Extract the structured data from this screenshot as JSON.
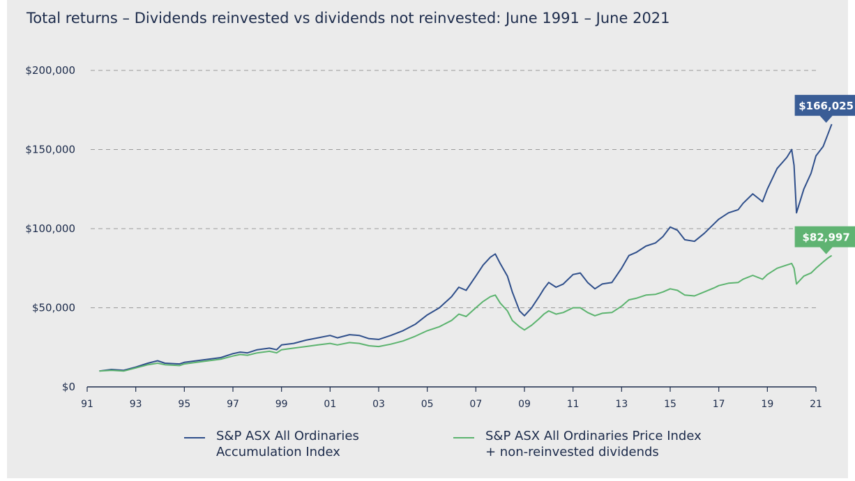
{
  "header": {
    "subtitle": "Total returns – Dividends reinvested vs dividends not reinvested: June 1991 – June 2021"
  },
  "colors": {
    "accumulation": "#2e4e8a",
    "price": "#5bb36e",
    "accumulation_callout": "#3a5d96",
    "price_callout": "#5fb372",
    "gridline": "#9a9a9a",
    "axis": "#1b2a4a"
  },
  "chart_data": {
    "type": "line",
    "xlabel": "",
    "ylabel": "",
    "xlim": [
      1991,
      2021
    ],
    "ylim": [
      0,
      200000
    ],
    "grid": true,
    "legend_placement": "bottom",
    "y_ticks": [
      {
        "value": 0,
        "label": "$0"
      },
      {
        "value": 50000,
        "label": "$50,000"
      },
      {
        "value": 100000,
        "label": "$100,000"
      },
      {
        "value": 150000,
        "label": "$150,000"
      },
      {
        "value": 200000,
        "label": "$200,000"
      }
    ],
    "x_ticks": [
      {
        "value": 1991,
        "label": "91"
      },
      {
        "value": 1993,
        "label": "93"
      },
      {
        "value": 1995,
        "label": "95"
      },
      {
        "value": 1997,
        "label": "97"
      },
      {
        "value": 1999,
        "label": "99"
      },
      {
        "value": 2001,
        "label": "01"
      },
      {
        "value": 2003,
        "label": "03"
      },
      {
        "value": 2005,
        "label": "05"
      },
      {
        "value": 2007,
        "label": "07"
      },
      {
        "value": 2009,
        "label": "09"
      },
      {
        "value": 2011,
        "label": "11"
      },
      {
        "value": 2013,
        "label": "13"
      },
      {
        "value": 2015,
        "label": "15"
      },
      {
        "value": 2017,
        "label": "17"
      },
      {
        "value": 2019,
        "label": "19"
      },
      {
        "value": 2021,
        "label": "21"
      }
    ],
    "series": [
      {
        "name": "S&P ASX All Ordinaries\nAccumulation Index",
        "key": "accumulation",
        "end_label": "$166,025",
        "points": [
          [
            1991.5,
            10000
          ],
          [
            1992.0,
            11000
          ],
          [
            1992.5,
            10500
          ],
          [
            1993.0,
            12500
          ],
          [
            1993.5,
            15000
          ],
          [
            1993.9,
            16500
          ],
          [
            1994.2,
            15000
          ],
          [
            1994.8,
            14500
          ],
          [
            1995.0,
            15500
          ],
          [
            1995.5,
            16500
          ],
          [
            1996.0,
            17500
          ],
          [
            1996.5,
            18500
          ],
          [
            1997.0,
            21000
          ],
          [
            1997.3,
            22000
          ],
          [
            1997.6,
            21500
          ],
          [
            1998.0,
            23500
          ],
          [
            1998.5,
            24500
          ],
          [
            1998.8,
            23500
          ],
          [
            1999.0,
            26500
          ],
          [
            1999.5,
            27500
          ],
          [
            2000.0,
            29500
          ],
          [
            2000.5,
            31000
          ],
          [
            2001.0,
            32500
          ],
          [
            2001.3,
            31000
          ],
          [
            2001.8,
            33000
          ],
          [
            2002.2,
            32500
          ],
          [
            2002.6,
            30500
          ],
          [
            2003.0,
            30000
          ],
          [
            2003.5,
            32500
          ],
          [
            2004.0,
            35500
          ],
          [
            2004.5,
            39500
          ],
          [
            2005.0,
            45500
          ],
          [
            2005.5,
            50000
          ],
          [
            2006.0,
            57000
          ],
          [
            2006.3,
            63000
          ],
          [
            2006.6,
            61000
          ],
          [
            2007.0,
            70000
          ],
          [
            2007.3,
            77000
          ],
          [
            2007.6,
            82000
          ],
          [
            2007.8,
            84000
          ],
          [
            2008.0,
            78000
          ],
          [
            2008.3,
            70000
          ],
          [
            2008.5,
            60000
          ],
          [
            2008.8,
            48000
          ],
          [
            2009.0,
            45000
          ],
          [
            2009.3,
            50000
          ],
          [
            2009.6,
            57000
          ],
          [
            2009.8,
            62000
          ],
          [
            2010.0,
            66000
          ],
          [
            2010.3,
            63000
          ],
          [
            2010.6,
            65000
          ],
          [
            2011.0,
            71000
          ],
          [
            2011.3,
            72000
          ],
          [
            2011.6,
            66000
          ],
          [
            2011.9,
            62000
          ],
          [
            2012.2,
            65000
          ],
          [
            2012.6,
            66000
          ],
          [
            2013.0,
            75000
          ],
          [
            2013.3,
            83000
          ],
          [
            2013.6,
            85000
          ],
          [
            2014.0,
            89000
          ],
          [
            2014.4,
            91000
          ],
          [
            2014.7,
            95000
          ],
          [
            2015.0,
            101000
          ],
          [
            2015.3,
            99000
          ],
          [
            2015.6,
            93000
          ],
          [
            2016.0,
            92000
          ],
          [
            2016.4,
            97000
          ],
          [
            2016.8,
            103000
          ],
          [
            2017.0,
            106000
          ],
          [
            2017.4,
            110000
          ],
          [
            2017.8,
            112000
          ],
          [
            2018.0,
            116000
          ],
          [
            2018.4,
            122000
          ],
          [
            2018.8,
            117000
          ],
          [
            2019.0,
            125000
          ],
          [
            2019.4,
            138000
          ],
          [
            2019.8,
            145000
          ],
          [
            2020.0,
            150000
          ],
          [
            2020.1,
            140000
          ],
          [
            2020.2,
            110000
          ],
          [
            2020.5,
            125000
          ],
          [
            2020.8,
            135000
          ],
          [
            2021.0,
            146000
          ],
          [
            2021.3,
            152000
          ],
          [
            2021.5,
            160000
          ],
          [
            2021.65,
            166025
          ]
        ]
      },
      {
        "name": "S&P ASX All Ordinaries Price Index\n+ non-reinvested dividends",
        "key": "price",
        "end_label": "$82,997",
        "points": [
          [
            1991.5,
            10000
          ],
          [
            1992.0,
            10500
          ],
          [
            1992.5,
            10000
          ],
          [
            1993.0,
            12000
          ],
          [
            1993.5,
            14000
          ],
          [
            1993.9,
            15000
          ],
          [
            1994.2,
            14000
          ],
          [
            1994.8,
            13500
          ],
          [
            1995.0,
            14500
          ],
          [
            1995.5,
            15500
          ],
          [
            1996.0,
            16500
          ],
          [
            1996.5,
            17500
          ],
          [
            1997.0,
            19500
          ],
          [
            1997.3,
            20500
          ],
          [
            1997.6,
            20000
          ],
          [
            1998.0,
            21500
          ],
          [
            1998.5,
            22500
          ],
          [
            1998.8,
            21500
          ],
          [
            1999.0,
            23500
          ],
          [
            1999.5,
            24500
          ],
          [
            2000.0,
            25500
          ],
          [
            2000.5,
            26500
          ],
          [
            2001.0,
            27500
          ],
          [
            2001.3,
            26500
          ],
          [
            2001.8,
            28000
          ],
          [
            2002.2,
            27500
          ],
          [
            2002.6,
            26000
          ],
          [
            2003.0,
            25500
          ],
          [
            2003.5,
            27000
          ],
          [
            2004.0,
            29000
          ],
          [
            2004.5,
            32000
          ],
          [
            2005.0,
            35500
          ],
          [
            2005.5,
            38000
          ],
          [
            2006.0,
            42000
          ],
          [
            2006.3,
            46000
          ],
          [
            2006.6,
            44500
          ],
          [
            2007.0,
            50000
          ],
          [
            2007.3,
            54000
          ],
          [
            2007.6,
            57000
          ],
          [
            2007.8,
            58000
          ],
          [
            2008.0,
            53000
          ],
          [
            2008.3,
            48000
          ],
          [
            2008.5,
            42000
          ],
          [
            2008.8,
            38000
          ],
          [
            2009.0,
            36000
          ],
          [
            2009.3,
            39000
          ],
          [
            2009.6,
            43000
          ],
          [
            2009.8,
            46000
          ],
          [
            2010.0,
            48000
          ],
          [
            2010.3,
            46000
          ],
          [
            2010.6,
            47000
          ],
          [
            2011.0,
            50000
          ],
          [
            2011.3,
            50000
          ],
          [
            2011.6,
            47000
          ],
          [
            2011.9,
            45000
          ],
          [
            2012.2,
            46500
          ],
          [
            2012.6,
            47000
          ],
          [
            2013.0,
            51000
          ],
          [
            2013.3,
            55000
          ],
          [
            2013.6,
            56000
          ],
          [
            2014.0,
            58000
          ],
          [
            2014.4,
            58500
          ],
          [
            2014.7,
            60000
          ],
          [
            2015.0,
            62000
          ],
          [
            2015.3,
            61000
          ],
          [
            2015.6,
            58000
          ],
          [
            2016.0,
            57500
          ],
          [
            2016.4,
            60000
          ],
          [
            2016.8,
            62500
          ],
          [
            2017.0,
            64000
          ],
          [
            2017.4,
            65500
          ],
          [
            2017.8,
            66000
          ],
          [
            2018.0,
            68000
          ],
          [
            2018.4,
            70500
          ],
          [
            2018.8,
            68000
          ],
          [
            2019.0,
            71000
          ],
          [
            2019.4,
            75000
          ],
          [
            2019.8,
            77000
          ],
          [
            2020.0,
            78000
          ],
          [
            2020.1,
            75000
          ],
          [
            2020.2,
            65000
          ],
          [
            2020.5,
            70000
          ],
          [
            2020.8,
            72000
          ],
          [
            2021.0,
            75000
          ],
          [
            2021.3,
            79000
          ],
          [
            2021.5,
            81500
          ],
          [
            2021.65,
            82997
          ]
        ]
      }
    ]
  }
}
